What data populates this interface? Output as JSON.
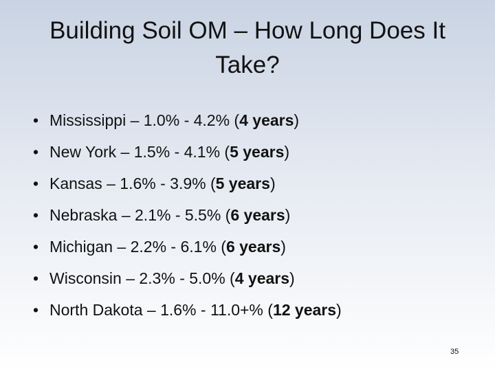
{
  "title": "Building Soil OM – How Long Does It Take?",
  "bullets": [
    {
      "text": "Mississippi – 1.0% - 4.2% (",
      "bold": "4 years",
      "end": ")"
    },
    {
      "text": "New York – 1.5% - 4.1% (",
      "bold": "5 years",
      "end": ")"
    },
    {
      "text": "Kansas – 1.6% - 3.9% (",
      "bold": "5 years",
      "end": ")"
    },
    {
      "text": "Nebraska – 2.1% - 5.5% (",
      "bold": "6 years",
      "end": ")"
    },
    {
      "text": "Michigan – 2.2% - 6.1% (",
      "bold": "6 years",
      "end": ")"
    },
    {
      "text": "Wisconsin – 2.3% - 5.0% (",
      "bold": "4 years",
      "end": ")"
    },
    {
      "text": "North Dakota – 1.6% - 11.0+% (",
      "bold": "12 years",
      "end": ")"
    }
  ],
  "page_number": "35"
}
